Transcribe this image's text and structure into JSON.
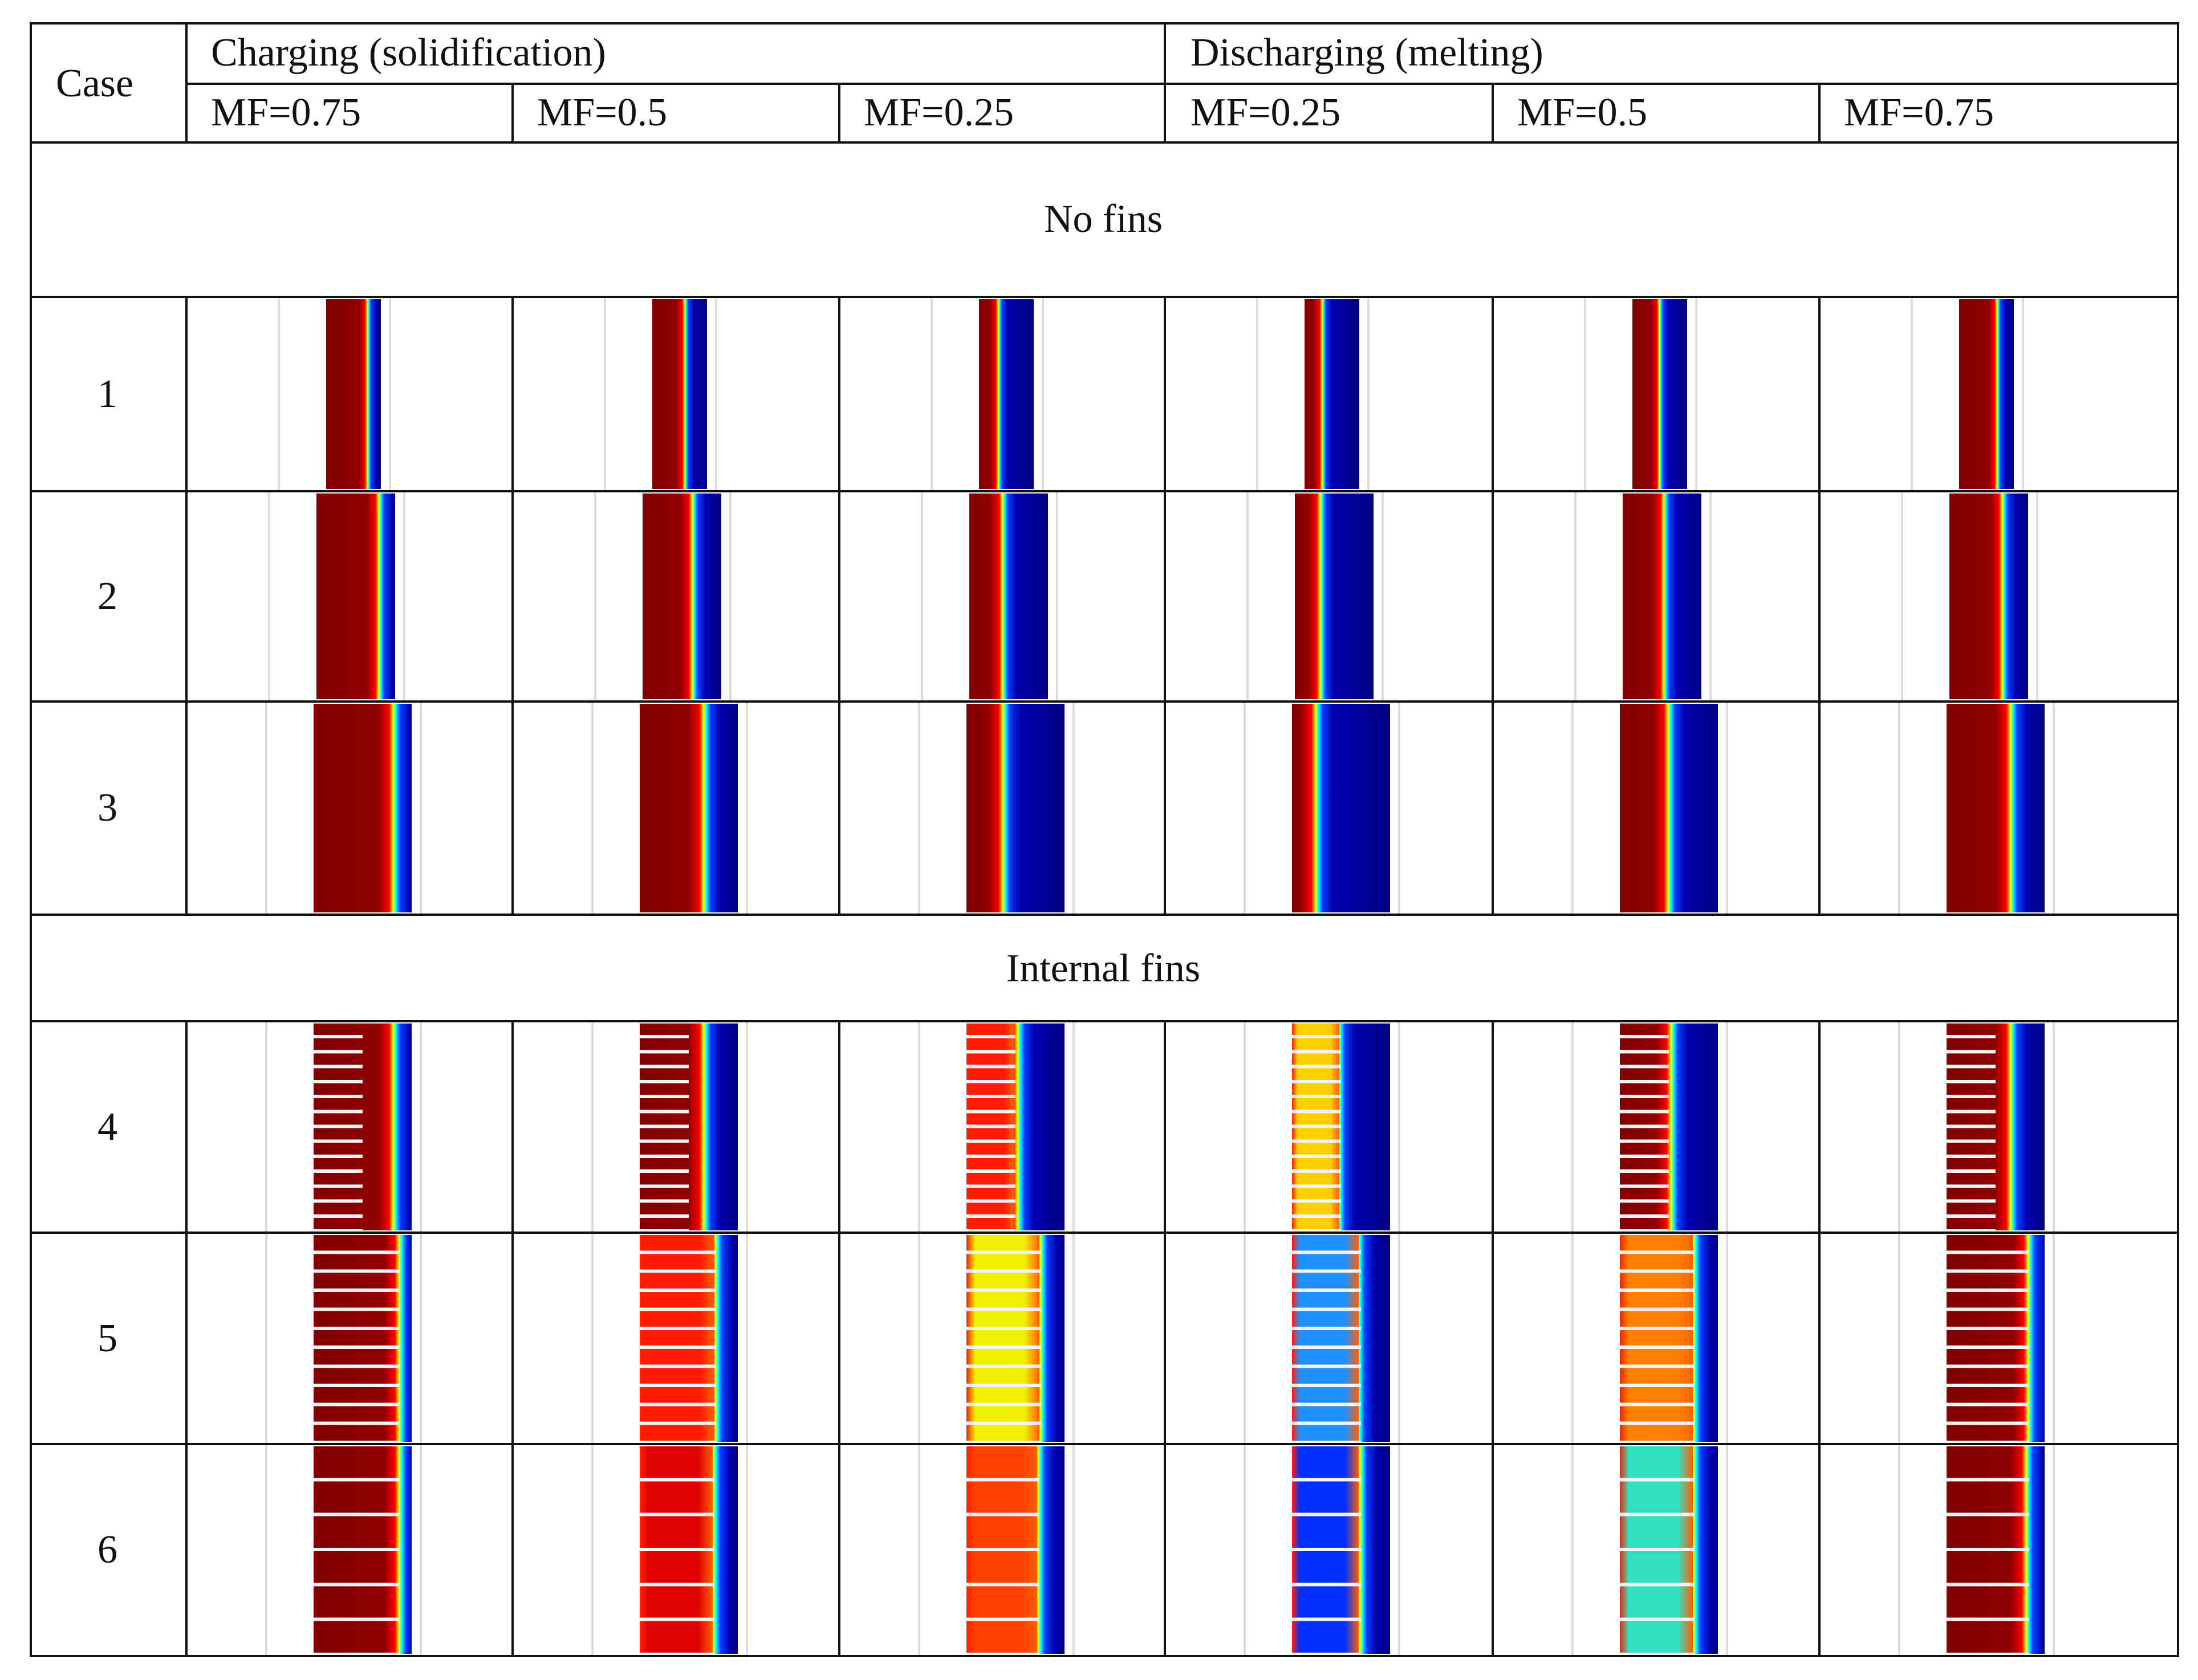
{
  "header": {
    "case_label": "Case",
    "charging_label": "Charging (solidification)",
    "discharging_label": "Discharging (melting)",
    "columns": [
      "MF=0.75",
      "MF=0.5",
      "MF=0.25",
      "MF=0.25",
      "MF=0.5",
      "MF=0.75"
    ]
  },
  "sections": {
    "no_fins": "No fins",
    "internal_fins": "Internal fins"
  },
  "colormap": {
    "hot": "#800000",
    "cold": "#000080"
  },
  "rows": [
    {
      "case": "1",
      "cells": [
        {
          "front": 0.78,
          "fins": 0,
          "fin_len": 0,
          "pocket": null
        },
        {
          "front": 0.62,
          "fins": 0,
          "fin_len": 0,
          "pocket": null
        },
        {
          "front": 0.38,
          "fins": 0,
          "fin_len": 0,
          "pocket": null
        },
        {
          "front": 0.35,
          "fins": 0,
          "fin_len": 0,
          "pocket": null
        },
        {
          "front": 0.52,
          "fins": 0,
          "fin_len": 0,
          "pocket": null
        },
        {
          "front": 0.72,
          "fins": 0,
          "fin_len": 0,
          "pocket": null
        }
      ]
    },
    {
      "case": "2",
      "cells": [
        {
          "front": 0.82,
          "fins": 0,
          "fin_len": 0,
          "pocket": null
        },
        {
          "front": 0.66,
          "fins": 0,
          "fin_len": 0,
          "pocket": null
        },
        {
          "front": 0.45,
          "fins": 0,
          "fin_len": 0,
          "pocket": null
        },
        {
          "front": 0.35,
          "fins": 0,
          "fin_len": 0,
          "pocket": null
        },
        {
          "front": 0.55,
          "fins": 0,
          "fin_len": 0,
          "pocket": null
        },
        {
          "front": 0.7,
          "fins": 0,
          "fin_len": 0,
          "pocket": null
        }
      ]
    },
    {
      "case": "3",
      "cells": [
        {
          "front": 0.84,
          "fins": 0,
          "fin_len": 0,
          "pocket": null
        },
        {
          "front": 0.68,
          "fins": 0,
          "fin_len": 0,
          "pocket": null
        },
        {
          "front": 0.4,
          "fins": 0,
          "fin_len": 0,
          "pocket": null
        },
        {
          "front": 0.27,
          "fins": 0,
          "fin_len": 0,
          "pocket": null
        },
        {
          "front": 0.52,
          "fins": 0,
          "fin_len": 0,
          "pocket": null
        },
        {
          "front": 0.68,
          "fins": 0,
          "fin_len": 0,
          "pocket": null
        }
      ]
    },
    {
      "case": "4",
      "cells": [
        {
          "front": 0.84,
          "fins": 14,
          "fin_len": 0.5,
          "pocket": null
        },
        {
          "front": 0.68,
          "fins": 14,
          "fin_len": 0.5,
          "pocket": null
        },
        {
          "front": 0.55,
          "fins": 14,
          "fin_len": 0.5,
          "pocket": "#ff1a00"
        },
        {
          "front": 0.5,
          "fins": 14,
          "fin_len": 0.5,
          "pocket": "#ffd000"
        },
        {
          "front": 0.55,
          "fins": 14,
          "fin_len": 0.5,
          "pocket": null
        },
        {
          "front": 0.68,
          "fins": 14,
          "fin_len": 0.5,
          "pocket": null
        }
      ]
    },
    {
      "case": "5",
      "cells": [
        {
          "front": 0.9,
          "fins": 11,
          "fin_len": 0.88,
          "pocket": null
        },
        {
          "front": 0.8,
          "fins": 11,
          "fin_len": 0.78,
          "pocket": "#ff1a00"
        },
        {
          "front": 0.78,
          "fins": 11,
          "fin_len": 0.76,
          "pocket": "#f0f000"
        },
        {
          "front": 0.7,
          "fins": 11,
          "fin_len": 0.7,
          "pocket": "#1e90ff"
        },
        {
          "front": 0.78,
          "fins": 11,
          "fin_len": 0.76,
          "pocket": "#ff8000"
        },
        {
          "front": 0.86,
          "fins": 11,
          "fin_len": 0.84,
          "pocket": null
        }
      ]
    },
    {
      "case": "6",
      "cells": [
        {
          "front": 0.9,
          "fins": 6,
          "fin_len": 0.88,
          "pocket": null
        },
        {
          "front": 0.78,
          "fins": 6,
          "fin_len": 0.76,
          "pocket": "#e00000"
        },
        {
          "front": 0.76,
          "fins": 6,
          "fin_len": 0.74,
          "pocket": "#ff4000"
        },
        {
          "front": 0.72,
          "fins": 6,
          "fin_len": 0.7,
          "pocket": "#0030ff"
        },
        {
          "front": 0.78,
          "fins": 6,
          "fin_len": 0.76,
          "pocket": "#30e0c0"
        },
        {
          "front": 0.84,
          "fins": 6,
          "fin_len": 0.84,
          "pocket": null
        }
      ]
    }
  ]
}
